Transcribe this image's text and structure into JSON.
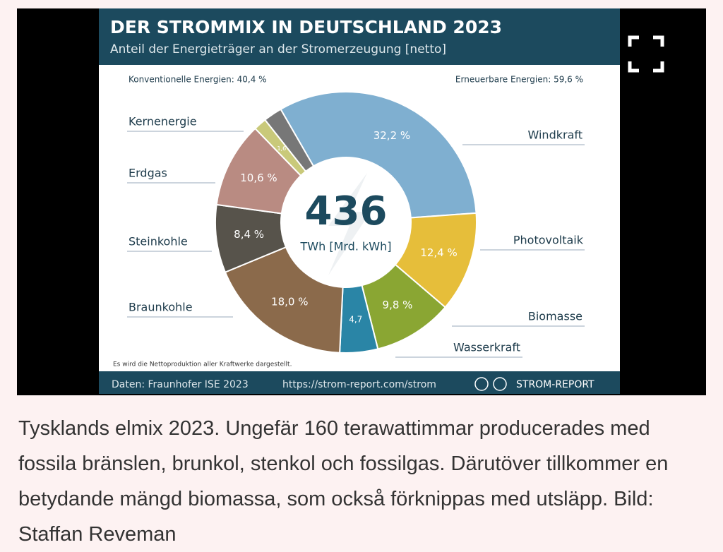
{
  "chart_data": {
    "type": "donut",
    "title": "DER STROMMIX IN DEUTSCHLAND 2023",
    "subtitle": "Anteil der Energieträger an der Stromerzeugung [netto]",
    "left_note": "Konventionelle Energien: 40,4 %",
    "right_note": "Erneuerbare Energien: 59,6 %",
    "center_value": 436,
    "center_label": "TWh [Mrd. kWh]",
    "categories": [
      "Windkraft",
      "Photovoltaik",
      "Biomasse",
      "Wasserkraft",
      "Braunkohle",
      "Steinkohle",
      "Erdgas",
      "Kernenergie",
      null
    ],
    "values": [
      32.2,
      12.4,
      9.8,
      4.7,
      18.0,
      8.4,
      10.6,
      1.6,
      2.3
    ],
    "value_labels": [
      "32,2 %",
      "12,4 %",
      "9,8 %",
      "4,7",
      "18,0 %",
      "8,4 %",
      "10,6 %",
      "1,6",
      null
    ],
    "colors": [
      "#7fafd0",
      "#e6be3a",
      "#8aa633",
      "#2a85a6",
      "#8b6a4b",
      "#57534b",
      "#b98b82",
      "#c9c97a",
      "#777777"
    ],
    "footnote": "Es wird die Nettoproduktion aller Kraftwerke dargestellt.",
    "source": "Daten: Fraunhofer ISE 2023",
    "url": "https://strom-report.com/strom",
    "brand": "STROM-REPORT"
  },
  "caption": "Tysklands elmix 2023. Ungefär 160 terawattimmar producerades med fossila bränslen, brunkol, stenkol och fossilgas. Därutöver tillkommer en betydande mängd biomassa, som också förknippas med utsläpp. Bild: Staffan Reveman"
}
